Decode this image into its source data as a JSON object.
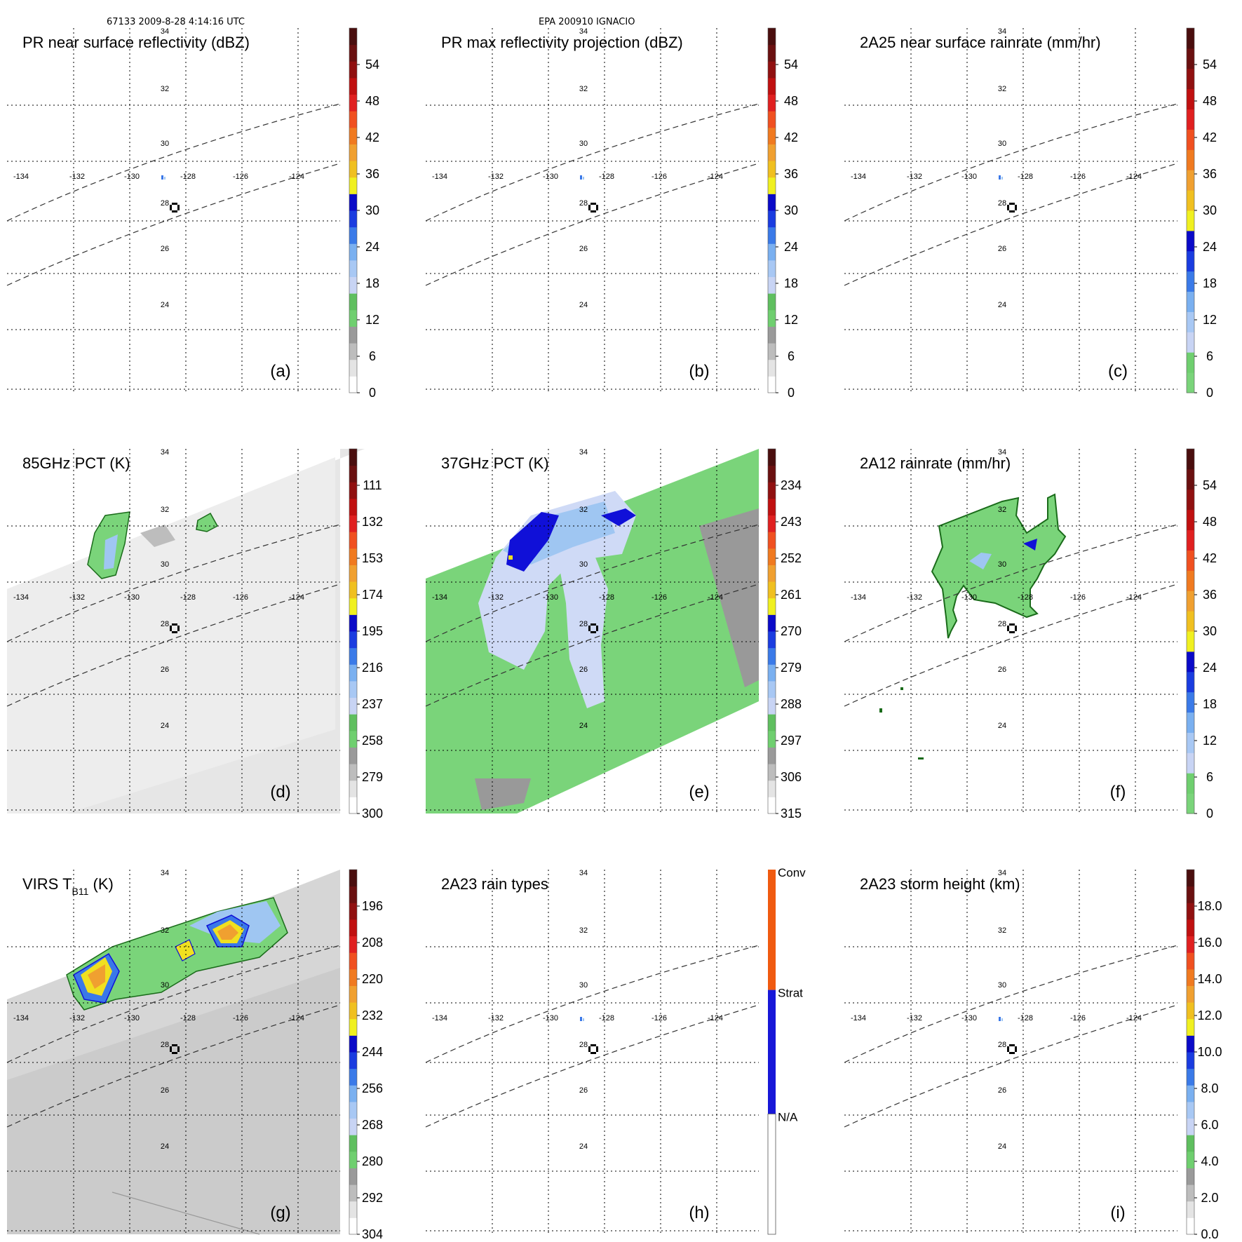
{
  "header": {
    "orbit_time": "67133 2009-8-28 4:14:16 UTC",
    "storm": "EPA 200910 IGNACIO"
  },
  "colors": {
    "land_green": "#7ad47a",
    "dark_green": "#1a6b1a",
    "blue_dark": "#1010d8",
    "blue_mid": "#3a78e8",
    "blue_light": "#9fc6f2",
    "blue_pale": "#cfdaf6",
    "gray_swath": "#e6e6e6",
    "gray_swath_dark": "#cfcfcf",
    "yellow": "#f0e020",
    "orange": "#f0a030",
    "red": "#e03020",
    "conv_orange": "#f05a10",
    "strat_blue": "#1818d8"
  },
  "chart_data": [
    {
      "id": "a",
      "type": "heatmap",
      "title": "PR near surface reflectivity (dBZ)",
      "panel_label": "(a)",
      "colorbar": {
        "ticks": [
          "54",
          "48",
          "42",
          "36",
          "30",
          "24",
          "18",
          "12",
          "6",
          "0"
        ]
      },
      "lat_labels": [
        "34",
        "32",
        "30",
        "28",
        "26",
        "24"
      ],
      "lon_labels": [
        "-134",
        "-132",
        "-130",
        "-128",
        "-126",
        "-124"
      ],
      "swath": "none",
      "features": "tiny"
    },
    {
      "id": "b",
      "type": "heatmap",
      "title": "PR max reflectivity projection (dBZ)",
      "panel_label": "(b)",
      "colorbar": {
        "ticks": [
          "54",
          "48",
          "42",
          "36",
          "30",
          "24",
          "18",
          "12",
          "6",
          "0"
        ]
      },
      "lat_labels": [
        "34",
        "32",
        "30",
        "28",
        "26",
        "24"
      ],
      "lon_labels": [
        "-134",
        "-132",
        "-130",
        "-128",
        "-126",
        "-124"
      ],
      "swath": "none",
      "features": "tiny"
    },
    {
      "id": "c",
      "type": "heatmap",
      "title": "2A25 near surface rainrate (mm/hr)",
      "panel_label": "(c)",
      "colorbar": {
        "ticks": [
          "54",
          "48",
          "42",
          "36",
          "30",
          "24",
          "18",
          "12",
          "6",
          "0"
        ]
      },
      "lat_labels": [
        "34",
        "32",
        "30",
        "28",
        "26",
        "24"
      ],
      "lon_labels": [
        "-134",
        "-132",
        "-130",
        "-128",
        "-126",
        "-124"
      ],
      "swath": "none",
      "features": "tiny"
    },
    {
      "id": "d",
      "type": "heatmap",
      "title": "85GHz PCT (K)",
      "panel_label": "(d)",
      "colorbar": {
        "ticks": [
          "111",
          "132",
          "153",
          "174",
          "195",
          "216",
          "237",
          "258",
          "279",
          "300"
        ]
      },
      "lat_labels": [
        "34",
        "32",
        "30",
        "28",
        "26",
        "24"
      ],
      "lon_labels": [
        "-134",
        "-132",
        "-130",
        "-128",
        "-126",
        "-124"
      ],
      "swath": "gray",
      "features": "pct85"
    },
    {
      "id": "e",
      "type": "heatmap",
      "title": "37GHz PCT (K)",
      "panel_label": "(e)",
      "colorbar": {
        "ticks": [
          "234",
          "243",
          "252",
          "261",
          "270",
          "279",
          "288",
          "297",
          "306",
          "315"
        ]
      },
      "lat_labels": [
        "34",
        "32",
        "30",
        "28",
        "26",
        "24"
      ],
      "lon_labels": [
        "-134",
        "-132",
        "-130",
        "-128",
        "-126",
        "-124"
      ],
      "swath": "green",
      "features": "pct37"
    },
    {
      "id": "f",
      "type": "heatmap",
      "title": "2A12 rainrate (mm/hr)",
      "panel_label": "(f)",
      "colorbar": {
        "ticks": [
          "54",
          "48",
          "42",
          "36",
          "30",
          "24",
          "18",
          "12",
          "6",
          "0"
        ]
      },
      "lat_labels": [
        "34",
        "32",
        "30",
        "28",
        "26",
        "24"
      ],
      "lon_labels": [
        "-134",
        "-132",
        "-130",
        "-128",
        "-126",
        "-124"
      ],
      "swath": "none",
      "features": "rain2a12"
    },
    {
      "id": "g",
      "type": "heatmap",
      "title": "VIRS T",
      "title_sub": "B11",
      "title_suffix": " (K)",
      "panel_label": "(g)",
      "colorbar": {
        "ticks": [
          "196",
          "208",
          "220",
          "232",
          "244",
          "256",
          "268",
          "280",
          "292",
          "304"
        ]
      },
      "lat_labels": [
        "34",
        "32",
        "30",
        "28",
        "26",
        "24"
      ],
      "lon_labels": [
        "-134",
        "-132",
        "-130",
        "-128",
        "-126",
        "-124"
      ],
      "swath": "virs",
      "features": "virs"
    },
    {
      "id": "h",
      "type": "heatmap",
      "title": "2A23 rain types",
      "panel_label": "(h)",
      "colorbar": {
        "categories": [
          "Conv",
          "Strat",
          "N/A"
        ]
      },
      "lat_labels": [
        "34",
        "32",
        "30",
        "28",
        "26",
        "24"
      ],
      "lon_labels": [
        "-134",
        "-132",
        "-130",
        "-128",
        "-126",
        "-124"
      ],
      "swath": "none",
      "features": "tiny"
    },
    {
      "id": "i",
      "type": "heatmap",
      "title": "2A23 storm height (km)",
      "panel_label": "(i)",
      "colorbar": {
        "ticks": [
          "18.0",
          "16.0",
          "14.0",
          "12.0",
          "10.0",
          "8.0",
          "6.0",
          "4.0",
          "2.0",
          "0.0"
        ]
      },
      "lat_labels": [
        "34",
        "32",
        "30",
        "28",
        "26",
        "24"
      ],
      "lon_labels": [
        "-134",
        "-132",
        "-130",
        "-128",
        "-126",
        "-124"
      ],
      "swath": "none",
      "features": "tiny"
    }
  ]
}
